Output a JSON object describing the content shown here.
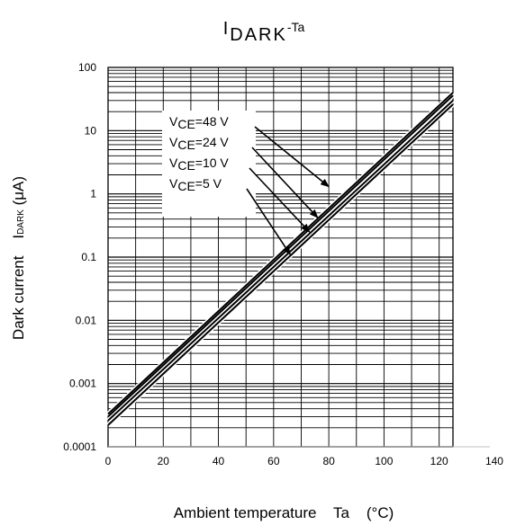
{
  "chart_data": {
    "type": "line",
    "title": {
      "main": "I",
      "sub": "DARK",
      "suffix": "-Ta"
    },
    "xlabel": "Ambient temperature    Ta    (°C)",
    "ylabel": {
      "main": "Dark current    I",
      "sub": "DARK",
      "unit": " (μA)"
    },
    "xlim": [
      0,
      140
    ],
    "ylim": [
      0.0001,
      100
    ],
    "yscale": "log",
    "xticks": [
      0,
      20,
      40,
      60,
      80,
      100,
      120,
      140
    ],
    "xtick_labels": [
      "0",
      "20",
      "40",
      "60",
      "80",
      "100",
      "120",
      "140"
    ],
    "yticks": [
      100,
      10,
      1,
      0.1,
      0.01,
      0.001,
      0.0001
    ],
    "ytick_labels": [
      "100",
      "10",
      "1",
      "0.1",
      "0.01",
      "0.001",
      "0.0001"
    ],
    "grid": true,
    "line_color": "#000000",
    "series": [
      {
        "name": "VCE=48 V",
        "x": [
          0,
          125
        ],
        "y": [
          0.00033,
          40
        ]
      },
      {
        "name": "VCE=24 V",
        "x": [
          0,
          125
        ],
        "y": [
          0.0003,
          36
        ]
      },
      {
        "name": "VCE=10 V",
        "x": [
          0,
          125
        ],
        "y": [
          0.00026,
          30
        ]
      },
      {
        "name": "VCE=5 V",
        "x": [
          0,
          125
        ],
        "y": [
          0.00022,
          26
        ]
      }
    ],
    "annotations": [
      {
        "prefix": "V",
        "sub": "CE",
        "rest": "=48 V",
        "target": [
          80,
          1.3
        ]
      },
      {
        "prefix": "V",
        "sub": "CE",
        "rest": "=24 V",
        "target": [
          76,
          0.42
        ]
      },
      {
        "prefix": "V",
        "sub": "CE",
        "rest": "=10 V",
        "target": [
          73,
          0.25
        ]
      },
      {
        "prefix": "V",
        "sub": "CE",
        "rest": "=5 V",
        "target": [
          66,
          0.11
        ]
      }
    ]
  }
}
